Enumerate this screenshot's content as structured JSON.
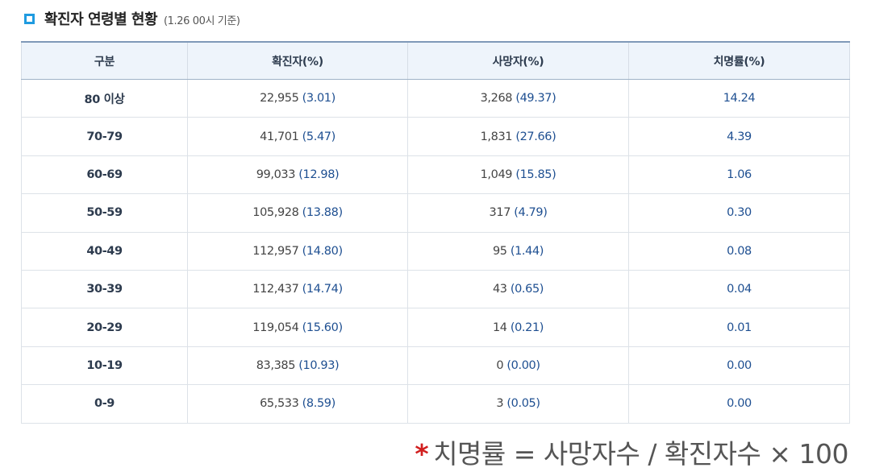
{
  "header": {
    "title": "확진자 연령별 현황",
    "subtitle": "(1.26 00시 기준)"
  },
  "table": {
    "columns": [
      "구분",
      "확진자(%)",
      "사망자(%)",
      "치명률(%)"
    ],
    "rows": [
      {
        "age": "80 이상",
        "cases": "22,955",
        "cases_pct": "(3.01)",
        "deaths": "3,268",
        "deaths_pct": "(49.37)",
        "fatality": "14.24"
      },
      {
        "age": "70-79",
        "cases": "41,701",
        "cases_pct": "(5.47)",
        "deaths": "1,831",
        "deaths_pct": "(27.66)",
        "fatality": "4.39"
      },
      {
        "age": "60-69",
        "cases": "99,033",
        "cases_pct": "(12.98)",
        "deaths": "1,049",
        "deaths_pct": "(15.85)",
        "fatality": "1.06"
      },
      {
        "age": "50-59",
        "cases": "105,928",
        "cases_pct": "(13.88)",
        "deaths": "317",
        "deaths_pct": "(4.79)",
        "fatality": "0.30"
      },
      {
        "age": "40-49",
        "cases": "112,957",
        "cases_pct": "(14.80)",
        "deaths": "95",
        "deaths_pct": "(1.44)",
        "fatality": "0.08"
      },
      {
        "age": "30-39",
        "cases": "112,437",
        "cases_pct": "(14.74)",
        "deaths": "43",
        "deaths_pct": "(0.65)",
        "fatality": "0.04"
      },
      {
        "age": "20-29",
        "cases": "119,054",
        "cases_pct": "(15.60)",
        "deaths": "14",
        "deaths_pct": "(0.21)",
        "fatality": "0.01"
      },
      {
        "age": "10-19",
        "cases": "83,385",
        "cases_pct": "(10.93)",
        "deaths": "0",
        "deaths_pct": "(0.00)",
        "fatality": "0.00"
      },
      {
        "age": "0-9",
        "cases": "65,533",
        "cases_pct": "(8.59)",
        "deaths": "3",
        "deaths_pct": "(0.05)",
        "fatality": "0.00"
      }
    ]
  },
  "footnote": {
    "marker": "*",
    "text": "치명률 = 사망자수 / 확진자수 × 100"
  },
  "colors": {
    "accent": "#1f9be0",
    "value_blue": "#1e4f91",
    "header_bg": "#eef4fb",
    "marker_red": "#d11f1f"
  }
}
